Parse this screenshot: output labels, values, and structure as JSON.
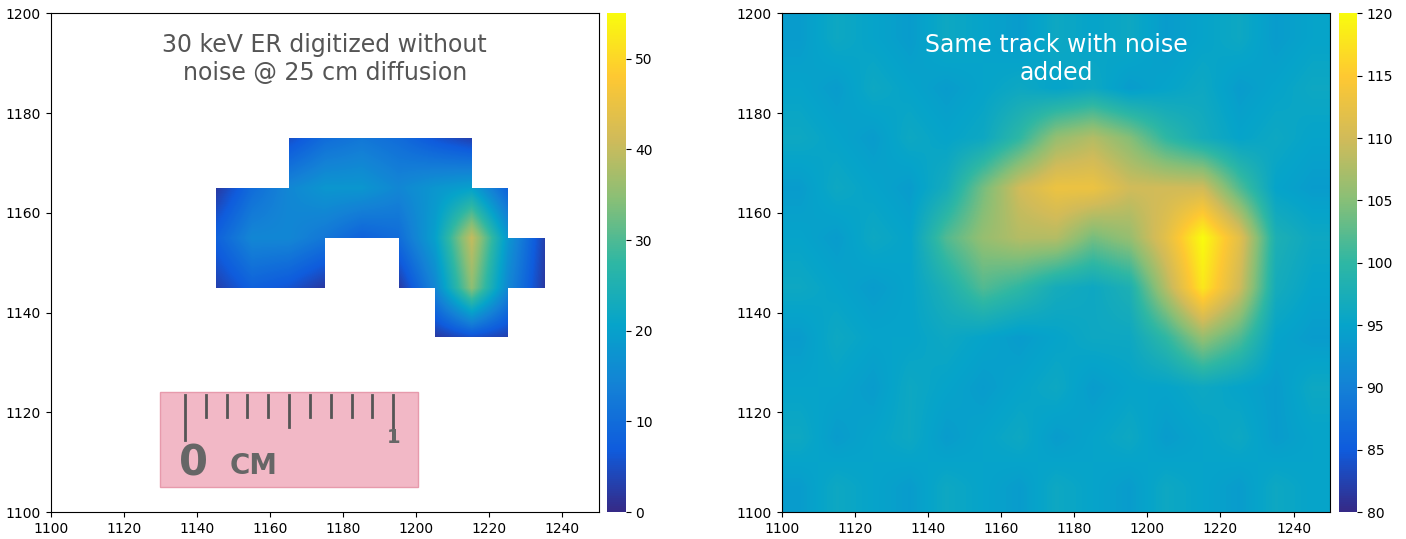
{
  "chart_data": [
    {
      "type": "heatmap",
      "annotation": "30 keV ER digitized without\nnoise @ 25 cm diffusion",
      "ruler_text": [
        "0",
        "CM",
        "1"
      ],
      "x_edges": [
        1100,
        1110,
        1120,
        1130,
        1140,
        1150,
        1160,
        1170,
        1180,
        1190,
        1200,
        1210,
        1220,
        1230,
        1240,
        1250
      ],
      "y_edges": [
        1100,
        1110,
        1120,
        1130,
        1140,
        1150,
        1160,
        1170,
        1180,
        1190,
        1200
      ],
      "cells": [
        [
          0,
          0,
          0,
          0,
          0,
          0,
          0,
          0,
          0,
          0,
          0,
          0,
          0,
          0,
          0
        ],
        [
          0,
          0,
          0,
          0,
          0,
          0,
          0,
          0,
          0,
          0,
          0,
          0,
          0,
          0,
          0
        ],
        [
          0,
          0,
          0,
          0,
          0,
          0,
          0,
          0,
          0,
          0,
          0,
          0,
          0,
          0,
          0
        ],
        [
          0,
          0,
          0,
          0,
          0,
          0,
          0,
          0,
          0,
          0,
          2,
          5,
          3,
          0,
          0
        ],
        [
          0,
          0,
          0,
          0,
          3,
          8,
          6,
          2,
          0,
          2,
          15,
          35,
          15,
          2,
          0
        ],
        [
          0,
          0,
          0,
          0,
          8,
          15,
          15,
          12,
          8,
          10,
          20,
          40,
          18,
          3,
          0
        ],
        [
          0,
          0,
          0,
          0,
          2,
          10,
          15,
          18,
          18,
          15,
          18,
          20,
          8,
          0,
          0
        ],
        [
          0,
          0,
          0,
          0,
          0,
          0,
          5,
          10,
          12,
          10,
          6,
          3,
          0,
          0,
          0
        ],
        [
          0,
          0,
          0,
          0,
          0,
          0,
          0,
          0,
          0,
          0,
          0,
          0,
          0,
          0,
          0
        ],
        [
          0,
          0,
          0,
          0,
          0,
          0,
          0,
          0,
          0,
          0,
          0,
          0,
          0,
          0,
          0
        ]
      ],
      "xlim": [
        1100,
        1250
      ],
      "xticks": [
        1100,
        1120,
        1140,
        1160,
        1180,
        1200,
        1220,
        1240
      ],
      "ylim": [
        1100,
        1200
      ],
      "yticks": [
        1100,
        1120,
        1140,
        1160,
        1180,
        1200
      ],
      "colorbar_range": [
        0,
        55
      ],
      "colorbar_ticks": [
        0,
        10,
        20,
        30,
        40,
        50
      ]
    },
    {
      "type": "heatmap",
      "annotation": "Same track with noise\nadded",
      "x_edges": [
        1100,
        1110,
        1120,
        1130,
        1140,
        1150,
        1160,
        1170,
        1180,
        1190,
        1200,
        1210,
        1220,
        1230,
        1240,
        1250
      ],
      "y_edges": [
        1100,
        1110,
        1120,
        1130,
        1140,
        1150,
        1160,
        1170,
        1180,
        1190,
        1200
      ],
      "cells": [
        [
          94,
          96,
          95,
          94,
          96,
          95,
          94,
          96,
          95,
          94,
          96,
          95,
          94,
          96,
          95
        ],
        [
          96,
          94,
          95,
          96,
          94,
          95,
          96,
          94,
          95,
          96,
          94,
          95,
          96,
          94,
          95
        ],
        [
          95,
          95,
          94,
          96,
          95,
          94,
          95,
          96,
          94,
          95,
          95,
          96,
          95,
          94,
          96
        ],
        [
          94,
          96,
          95,
          95,
          96,
          95,
          94,
          95,
          96,
          96,
          100,
          106,
          102,
          95,
          94
        ],
        [
          96,
          95,
          94,
          95,
          98,
          102,
          100,
          97,
          96,
          98,
          108,
          118,
          110,
          97,
          95
        ],
        [
          95,
          94,
          96,
          95,
          102,
          106,
          108,
          108,
          104,
          106,
          112,
          120,
          112,
          98,
          96
        ],
        [
          94,
          96,
          95,
          94,
          97,
          104,
          110,
          113,
          113,
          110,
          110,
          110,
          102,
          95,
          94
        ],
        [
          96,
          95,
          94,
          96,
          95,
          96,
          100,
          106,
          108,
          105,
          100,
          97,
          95,
          96,
          95
        ],
        [
          95,
          94,
          96,
          95,
          94,
          95,
          96,
          95,
          96,
          94,
          95,
          96,
          94,
          95,
          96
        ],
        [
          94,
          96,
          95,
          94,
          96,
          95,
          94,
          96,
          95,
          96,
          94,
          95,
          96,
          94,
          95
        ]
      ],
      "xlim": [
        1100,
        1250
      ],
      "xticks": [
        1100,
        1120,
        1140,
        1160,
        1180,
        1200,
        1220,
        1240
      ],
      "ylim": [
        1100,
        1200
      ],
      "yticks": [
        1100,
        1120,
        1140,
        1160,
        1180,
        1200
      ],
      "colorbar_range": [
        80,
        120
      ],
      "colorbar_ticks": [
        80,
        85,
        90,
        95,
        100,
        105,
        110,
        115,
        120
      ]
    }
  ]
}
